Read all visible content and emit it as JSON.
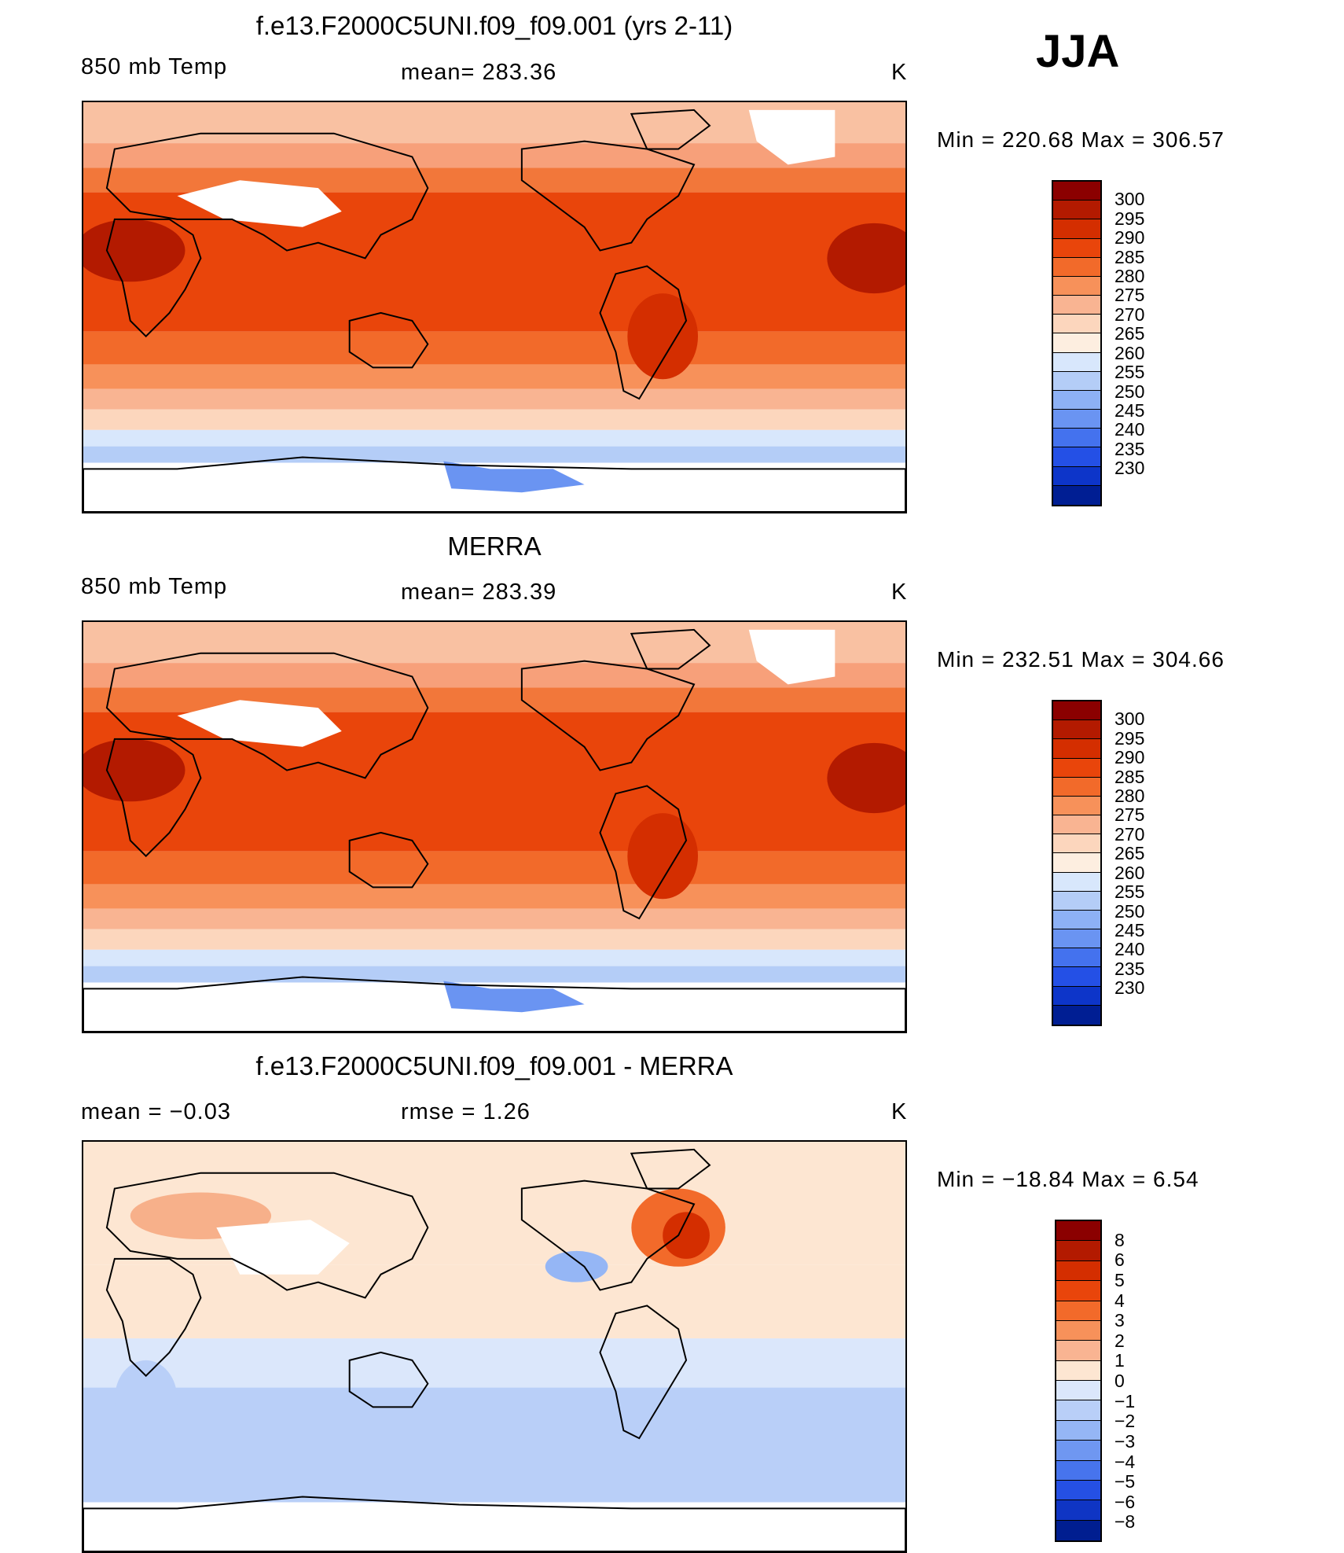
{
  "season": "JJA",
  "panels": [
    {
      "title": "f.e13.F2000C5UNI.f09_f09.001 (yrs 2-11)",
      "left_label": "850 mb Temp",
      "center_label": "mean= 283.36",
      "units": "K",
      "minmax": "Min = 220.68 Max = 306.57",
      "type": "field"
    },
    {
      "title": "MERRA",
      "left_label": "850 mb Temp",
      "center_label": "mean= 283.39",
      "units": "K",
      "minmax": "Min = 232.51 Max = 304.66",
      "type": "field"
    },
    {
      "title": "f.e13.F2000C5UNI.f09_f09.001 - MERRA",
      "left_label": "mean = −0.03",
      "center_label": "rmse = 1.26",
      "units": "K",
      "minmax": "Min = −18.84 Max = 6.54",
      "type": "diff"
    }
  ],
  "colorbars": {
    "field": {
      "labels": [
        "300",
        "295",
        "290",
        "285",
        "280",
        "275",
        "270",
        "265",
        "260",
        "255",
        "250",
        "245",
        "240",
        "235",
        "230"
      ],
      "colors": [
        "#8b0000",
        "#b31a00",
        "#d42e00",
        "#e9450b",
        "#f26a2a",
        "#f7915a",
        "#f9b492",
        "#fcd6bd",
        "#fdeee0",
        "#d8e7fc",
        "#b4cdf7",
        "#8db1f5",
        "#6a94f2",
        "#4472ee",
        "#2450e6",
        "#0d35c9",
        "#001e93"
      ]
    },
    "diff": {
      "labels": [
        "8",
        "6",
        "5",
        "4",
        "3",
        "2",
        "1",
        "0",
        "−1",
        "−2",
        "−3",
        "−4",
        "−5",
        "−6",
        "−8"
      ],
      "colors": [
        "#8b0000",
        "#b31a00",
        "#d42e00",
        "#e9450b",
        "#f26a2a",
        "#f7915a",
        "#f9b492",
        "#fde6d2",
        "#dbe7fb",
        "#b9cff8",
        "#95b6f5",
        "#6f97f1",
        "#4774ed",
        "#2550e4",
        "#0f35c4",
        "#001e90"
      ]
    }
  }
}
